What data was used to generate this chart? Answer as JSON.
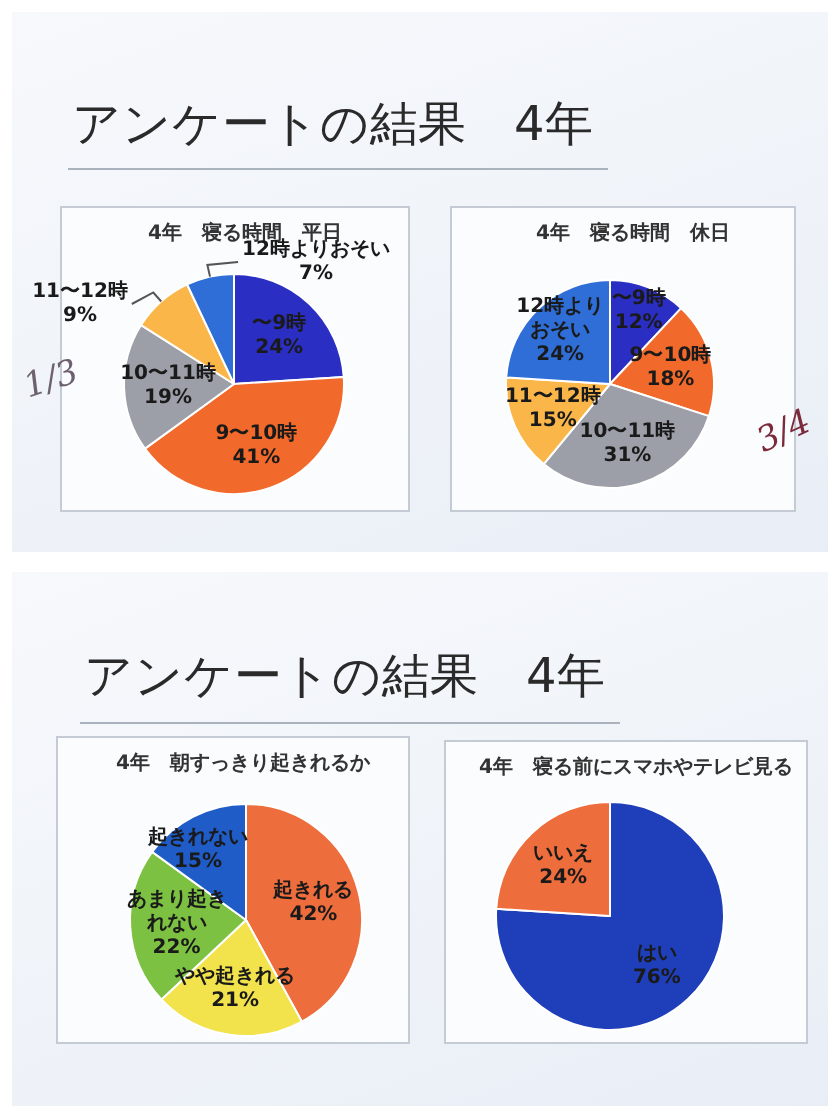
{
  "chart_data": [
    {
      "type": "other",
      "title": "アンケートの結果　4年"
    },
    {
      "type": "pie",
      "title": "4年　寝る時間　平日",
      "categories": [
        "〜9時",
        "9〜10時",
        "10〜11時",
        "11〜12時",
        "12時よりおそい"
      ],
      "values": [
        24,
        41,
        19,
        9,
        7
      ],
      "value_labels": [
        "24%",
        "41%",
        "19%",
        "9%",
        "7%"
      ],
      "colors": [
        "#2b2ec2",
        "#f26a2b",
        "#9c9ea8",
        "#fbb64a",
        "#2e6ed6"
      ],
      "annotations": [
        "1/3"
      ]
    },
    {
      "type": "pie",
      "title": "4年　寝る時間　休日",
      "categories": [
        "〜9時",
        "9〜10時",
        "10〜11時",
        "11〜12時",
        "12時よりおそい"
      ],
      "values": [
        12,
        18,
        31,
        15,
        24
      ],
      "value_labels": [
        "12%",
        "18%",
        "31%",
        "15%",
        "24%"
      ],
      "colors": [
        "#2b2ec2",
        "#f26a2b",
        "#9c9ea8",
        "#fbb64a",
        "#2e6ed6"
      ],
      "annotations": [
        "3/4"
      ]
    },
    {
      "type": "other",
      "title": "アンケートの結果　4年"
    },
    {
      "type": "pie",
      "title": "4年　朝すっきり起きれるか",
      "categories": [
        "起きれる",
        "やや起きれる",
        "あまり起きれない",
        "起きれない"
      ],
      "values": [
        42,
        21,
        22,
        15
      ],
      "value_labels": [
        "42%",
        "21%",
        "22%",
        "15%"
      ],
      "colors": [
        "#ee6d3d",
        "#f2e34c",
        "#7dc142",
        "#1f5cc7"
      ]
    },
    {
      "type": "pie",
      "title": "4年　寝る前にスマホやテレビ見る",
      "categories": [
        "はい",
        "いいえ"
      ],
      "values": [
        76,
        24
      ],
      "value_labels": [
        "76%",
        "24%"
      ],
      "colors": [
        "#1f3fba",
        "#ee6d3d"
      ]
    }
  ]
}
